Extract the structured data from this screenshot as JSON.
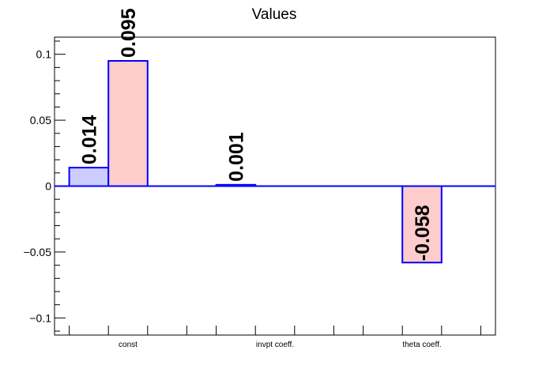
{
  "chart_data": {
    "type": "bar",
    "title": "Values",
    "xlabel": "",
    "ylabel": "",
    "ylim": [
      -0.113,
      0.113
    ],
    "categories": [
      "const",
      "invpt coeff.",
      "theta coeff."
    ],
    "y_ticks": [
      -0.1,
      -0.05,
      0,
      0.05,
      0.1
    ],
    "y_tick_labels": [
      "−0.1",
      "−0.05",
      "0",
      "0.05",
      "0.1"
    ],
    "series": [
      {
        "values": [
          0.014,
          0.001,
          0
        ],
        "fill": "#ccccff",
        "stroke": "#0000ff"
      },
      {
        "values": [
          0.095,
          0,
          -0.058
        ],
        "fill": "#ffcccc",
        "stroke": "#0000ff"
      }
    ],
    "data_labels": [
      {
        "series": 0,
        "category": 0,
        "text": "0.014"
      },
      {
        "series": 1,
        "category": 0,
        "text": "0.095"
      },
      {
        "series": 0,
        "category": 1,
        "text": "0.001"
      },
      {
        "series": 1,
        "category": 2,
        "text": "-0.058"
      }
    ],
    "grid": false,
    "zero_line_color": "#0000ff"
  }
}
